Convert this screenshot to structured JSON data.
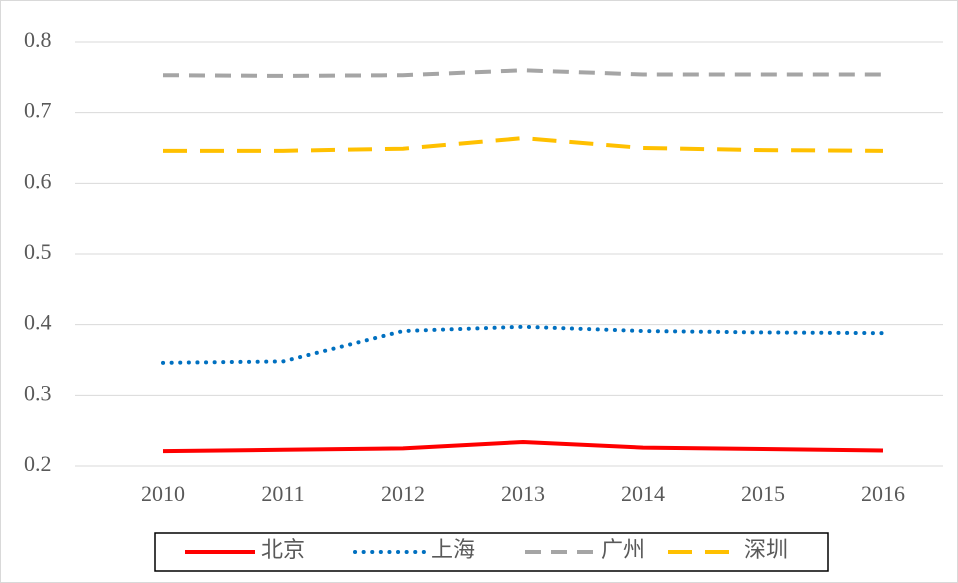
{
  "chart_data": {
    "type": "line",
    "categories": [
      "2010",
      "2011",
      "2012",
      "2013",
      "2014",
      "2015",
      "2016"
    ],
    "series": [
      {
        "name": "北京",
        "color": "#ff0000",
        "dash": "solid",
        "values": [
          0.221,
          0.223,
          0.225,
          0.234,
          0.226,
          0.224,
          0.222
        ]
      },
      {
        "name": "上海",
        "color": "#0070c0",
        "dash": "dot",
        "values": [
          0.346,
          0.348,
          0.391,
          0.397,
          0.391,
          0.389,
          0.388
        ]
      },
      {
        "name": "广州",
        "color": "#a5a5a5",
        "dash": "dash",
        "values": [
          0.753,
          0.752,
          0.753,
          0.76,
          0.754,
          0.754,
          0.754
        ]
      },
      {
        "name": "深圳",
        "color": "#ffc000",
        "dash": "longdash",
        "values": [
          0.646,
          0.646,
          0.649,
          0.664,
          0.65,
          0.647,
          0.646
        ]
      }
    ],
    "ylim": [
      0.2,
      0.8
    ],
    "yticks": [
      0.2,
      0.3,
      0.4,
      0.5,
      0.6,
      0.7,
      0.8
    ],
    "grid": true,
    "legend": "bottom"
  }
}
